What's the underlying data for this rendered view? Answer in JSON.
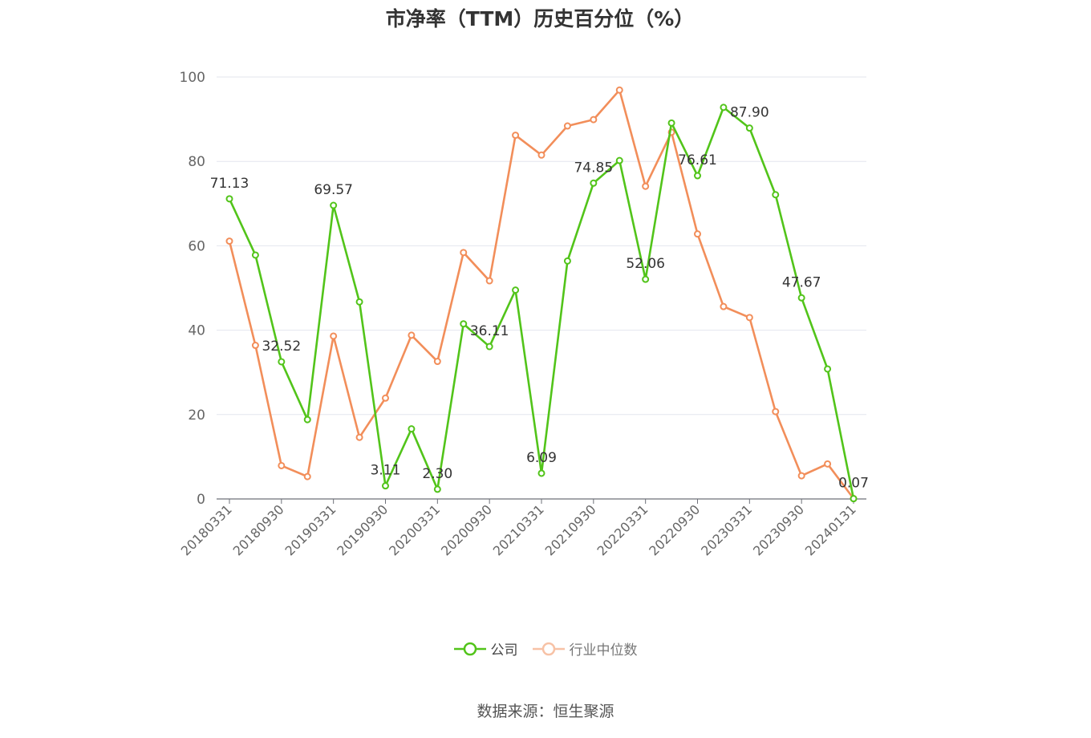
{
  "chart_data": {
    "type": "line",
    "title": "市净率（TTM）历史百分位（%）",
    "xlabel": "",
    "ylabel": "",
    "ylim": [
      0,
      100
    ],
    "yticks": [
      0,
      20,
      40,
      60,
      80,
      100
    ],
    "x": [
      "20180331",
      "20180630",
      "20180930",
      "20181231",
      "20190331",
      "20190630",
      "20190930",
      "20191231",
      "20200331",
      "20200630",
      "20200930",
      "20201231",
      "20210331",
      "20210630",
      "20210930",
      "20211231",
      "20220331",
      "20220630",
      "20220930",
      "20221231",
      "20230331",
      "20230630",
      "20230930",
      "20231231",
      "20240131"
    ],
    "x_tick_labels": [
      "20180331",
      "20180930",
      "20190331",
      "20190930",
      "20200331",
      "20200930",
      "20210331",
      "20210930",
      "20220331",
      "20220930",
      "20230331",
      "20230930",
      "20240131"
    ],
    "grid": true,
    "legend_position": "bottom-center",
    "series": [
      {
        "name": "公司",
        "color": "#52c41a",
        "values": [
          71.13,
          57.8,
          32.52,
          18.8,
          69.57,
          46.7,
          3.11,
          16.6,
          2.3,
          41.5,
          36.11,
          49.5,
          6.09,
          56.4,
          74.85,
          80.2,
          52.06,
          89.1,
          76.61,
          92.8,
          87.9,
          72.1,
          47.67,
          30.8,
          0.07
        ],
        "labels": [
          "71.13",
          "",
          "32.52",
          "",
          "69.57",
          "",
          "3.11",
          "",
          "2.30",
          "",
          "36.11",
          "",
          "6.09",
          "",
          "74.85",
          "",
          "52.06",
          "",
          "76.61",
          "",
          "87.90",
          "",
          "47.67",
          "",
          "0.07"
        ]
      },
      {
        "name": "行业中位数",
        "color": "#f28e5a",
        "values": [
          61.1,
          36.4,
          7.9,
          5.3,
          38.6,
          14.6,
          23.9,
          38.8,
          32.6,
          58.4,
          51.7,
          86.2,
          81.5,
          88.4,
          89.9,
          96.9,
          74.1,
          86.9,
          62.8,
          45.6,
          43.0,
          20.7,
          5.5,
          8.3,
          0.1
        ]
      }
    ],
    "source": "数据来源：恒生聚源"
  }
}
